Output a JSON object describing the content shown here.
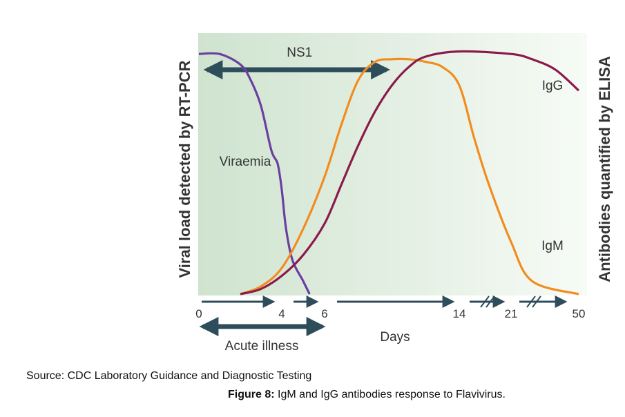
{
  "chart_data": {
    "type": "line",
    "ylabel_left": "Viral load detected by RT-PCR",
    "ylabel_right": "Antibodies quantified by ELISA",
    "xlabel": "Days",
    "x_ticks": [
      "0",
      "4",
      "6",
      "14",
      "21",
      "50"
    ],
    "x_tick_days": [
      0,
      4,
      6,
      14,
      21,
      50
    ],
    "axis_breaks_between": [
      [
        14,
        21
      ],
      [
        21,
        50
      ]
    ],
    "series": [
      {
        "name": "Viraemia",
        "color": "#6b3fa0",
        "x": [
          0,
          1,
          2,
          2.5,
          3,
          3.5,
          3.8,
          4,
          4.2,
          4.5,
          5,
          5.3
        ],
        "y": [
          0.92,
          0.92,
          0.88,
          0.82,
          0.72,
          0.55,
          0.5,
          0.4,
          0.25,
          0.13,
          0.05,
          0
        ]
      },
      {
        "name": "IgM",
        "color": "#f28c1f",
        "x": [
          2,
          3,
          4,
          5,
          6,
          7,
          8,
          9,
          10,
          11,
          12,
          13,
          14,
          16,
          18,
          21,
          30,
          50
        ],
        "y": [
          0,
          0.03,
          0.1,
          0.25,
          0.45,
          0.65,
          0.82,
          0.89,
          0.9,
          0.9,
          0.89,
          0.87,
          0.8,
          0.6,
          0.42,
          0.2,
          0.05,
          0
        ]
      },
      {
        "name": "IgG",
        "color": "#8b1a4a",
        "x": [
          2,
          3,
          4,
          5,
          6,
          7,
          8,
          9,
          10,
          11,
          12,
          14,
          21,
          30,
          40,
          50
        ],
        "y": [
          0,
          0.02,
          0.07,
          0.15,
          0.27,
          0.42,
          0.57,
          0.7,
          0.8,
          0.87,
          0.91,
          0.93,
          0.92,
          0.9,
          0.86,
          0.78
        ]
      }
    ],
    "annotations": {
      "ns1": {
        "label": "NS1",
        "from_day": 0,
        "to_day": 10
      },
      "acute": {
        "label": "Acute illness",
        "from_day": 0,
        "to_day": 6
      }
    },
    "legend": "inline"
  },
  "source_text": "Source: CDC Laboratory Guidance and Diagnostic Testing",
  "caption": {
    "prefix": "Figure 8:",
    "text": " IgM and IgG antibodies response to Flavivirus."
  }
}
